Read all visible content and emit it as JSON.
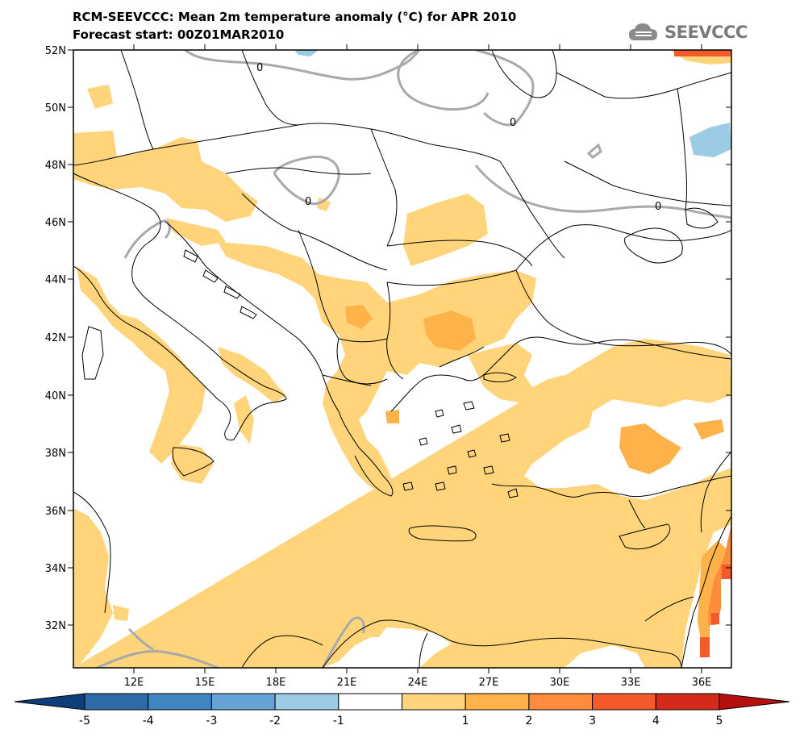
{
  "header": {
    "title_line1": "RCM-SEEVCCC: Mean 2m temperature anomaly (°C) for APR 2010",
    "title_line2": "Forecast start: 00Z01MAR2010",
    "logo_text": "SEEVCCC",
    "logo_icon": "cloud-icon"
  },
  "map": {
    "lat_labels": [
      "52N",
      "50N",
      "48N",
      "46N",
      "44N",
      "42N",
      "40N",
      "38N",
      "36N",
      "34N",
      "32N"
    ],
    "lon_labels": [
      "12E",
      "15E",
      "18E",
      "21E",
      "24E",
      "27E",
      "30E",
      "33E",
      "36E"
    ],
    "contour_labels": [
      "0",
      "0",
      "0",
      "0"
    ]
  },
  "colorbar": {
    "labels": [
      "-5",
      "-4",
      "-3",
      "-2",
      "-1",
      "1",
      "2",
      "3",
      "4",
      "5"
    ],
    "colors": [
      "#2c6aa8",
      "#3f86c2",
      "#63a3d6",
      "#9ccbe6",
      "#ffffff",
      "#ffd47a",
      "#ffb24a",
      "#ff8c3c",
      "#f55a2a",
      "#d42a1a"
    ],
    "low_extend_color": "#0d3d7a",
    "high_extend_color": "#b50f0f"
  }
}
